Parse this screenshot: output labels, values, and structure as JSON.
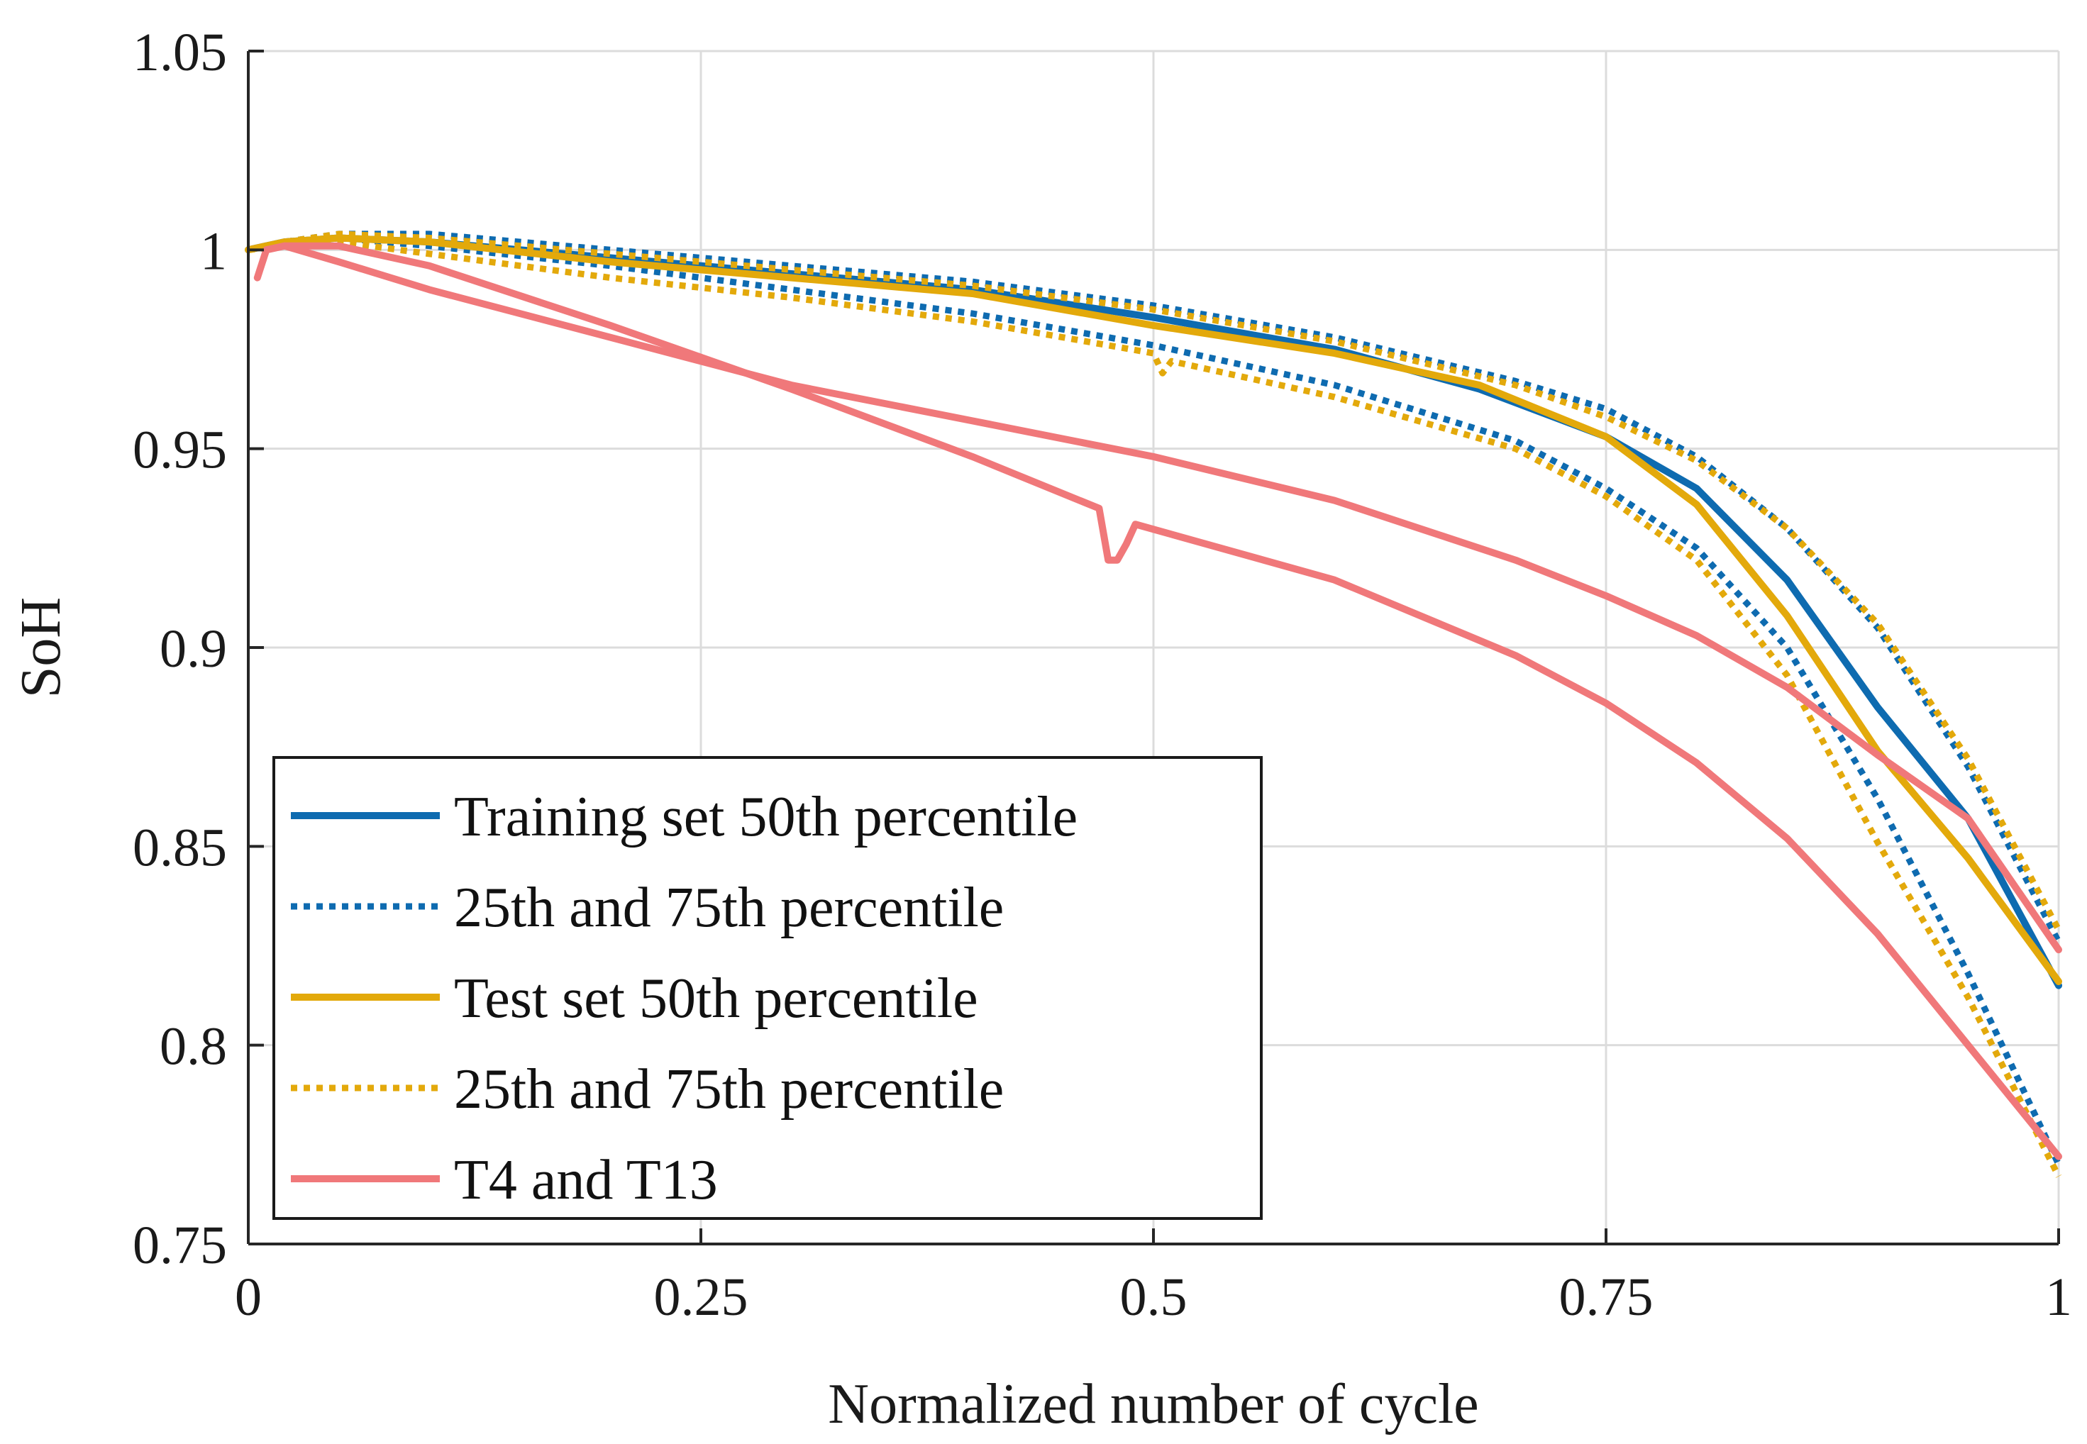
{
  "chart_data": {
    "type": "line",
    "title": "",
    "xlabel": "Normalized number of cycle",
    "ylabel": "SoH",
    "xlim": [
      0,
      1
    ],
    "ylim": [
      0.75,
      1.05
    ],
    "grid": true,
    "legend_position": "bottom-left",
    "x_ticks": [
      {
        "value": 0,
        "label": "0"
      },
      {
        "value": 0.25,
        "label": "0.25"
      },
      {
        "value": 0.5,
        "label": "0.5"
      },
      {
        "value": 0.75,
        "label": "0.75"
      },
      {
        "value": 1,
        "label": "1"
      }
    ],
    "y_ticks": [
      {
        "value": 0.75,
        "label": "0.75"
      },
      {
        "value": 0.8,
        "label": "0.8"
      },
      {
        "value": 0.85,
        "label": "0.85"
      },
      {
        "value": 0.9,
        "label": "0.9"
      },
      {
        "value": 0.95,
        "label": "0.95"
      },
      {
        "value": 1.0,
        "label": "1"
      },
      {
        "value": 1.05,
        "label": "1.05"
      }
    ],
    "series": [
      {
        "name": "Training set 50th percentile",
        "color": "#0e6bb0",
        "style": "solid",
        "x": [
          0.0,
          0.02,
          0.05,
          0.1,
          0.2,
          0.3,
          0.4,
          0.5,
          0.6,
          0.68,
          0.75,
          0.8,
          0.85,
          0.9,
          0.95,
          1.0
        ],
        "y": [
          1.0,
          1.002,
          1.003,
          1.002,
          0.998,
          0.994,
          0.99,
          0.983,
          0.975,
          0.965,
          0.953,
          0.94,
          0.917,
          0.885,
          0.857,
          0.815
        ]
      },
      {
        "name": "25th and 75th percentile",
        "color": "#0e6bb0",
        "style": "dotted",
        "x": [
          0.0,
          0.02,
          0.05,
          0.1,
          0.2,
          0.3,
          0.4,
          0.5,
          0.6,
          0.7,
          0.75,
          0.8,
          0.85,
          0.9,
          0.95,
          1.0
        ],
        "y": [
          1.0,
          1.002,
          1.004,
          1.004,
          1.0,
          0.996,
          0.992,
          0.986,
          0.978,
          0.967,
          0.96,
          0.948,
          0.93,
          0.905,
          0.87,
          0.826
        ]
      },
      {
        "name": "25th and 75th percentile",
        "color": "#0e6bb0",
        "style": "dotted",
        "x": [
          0.0,
          0.02,
          0.05,
          0.1,
          0.2,
          0.3,
          0.4,
          0.5,
          0.6,
          0.7,
          0.75,
          0.8,
          0.85,
          0.9,
          0.95,
          1.0
        ],
        "y": [
          1.0,
          1.002,
          1.003,
          1.001,
          0.996,
          0.99,
          0.984,
          0.976,
          0.966,
          0.952,
          0.94,
          0.925,
          0.9,
          0.862,
          0.818,
          0.77
        ],
        "legend": false
      },
      {
        "name": "Test set 50th percentile",
        "color": "#e3a90b",
        "style": "solid",
        "x": [
          0.0,
          0.02,
          0.05,
          0.1,
          0.2,
          0.3,
          0.4,
          0.5,
          0.6,
          0.68,
          0.75,
          0.8,
          0.85,
          0.9,
          0.95,
          1.0
        ],
        "y": [
          1.0,
          1.002,
          1.003,
          1.002,
          0.997,
          0.993,
          0.989,
          0.981,
          0.974,
          0.966,
          0.953,
          0.936,
          0.908,
          0.874,
          0.847,
          0.816
        ]
      },
      {
        "name": "25th and 75th percentile",
        "color": "#e3a90b",
        "style": "dotted",
        "x": [
          0.0,
          0.02,
          0.05,
          0.1,
          0.2,
          0.3,
          0.4,
          0.5,
          0.6,
          0.7,
          0.75,
          0.8,
          0.85,
          0.9,
          0.95,
          1.0
        ],
        "y": [
          1.0,
          1.002,
          1.004,
          1.003,
          0.999,
          0.995,
          0.991,
          0.985,
          0.977,
          0.966,
          0.958,
          0.947,
          0.93,
          0.906,
          0.872,
          0.829
        ]
      },
      {
        "name": "25th and 75th percentile",
        "color": "#e3a90b",
        "style": "dotted",
        "x": [
          0.0,
          0.02,
          0.05,
          0.1,
          0.2,
          0.3,
          0.4,
          0.5,
          0.505,
          0.51,
          0.6,
          0.7,
          0.75,
          0.8,
          0.85,
          0.9,
          0.95,
          1.0
        ],
        "y": [
          1.0,
          1.001,
          1.002,
          0.999,
          0.993,
          0.988,
          0.982,
          0.974,
          0.969,
          0.972,
          0.963,
          0.95,
          0.938,
          0.922,
          0.893,
          0.851,
          0.812,
          0.767
        ],
        "legend": false
      },
      {
        "name": "T4 and T13",
        "color": "#f0787a",
        "style": "solid",
        "x": [
          0.005,
          0.01,
          0.02,
          0.05,
          0.1,
          0.2,
          0.3,
          0.4,
          0.5,
          0.6,
          0.7,
          0.75,
          0.8,
          0.85,
          0.9,
          0.95,
          1.0
        ],
        "y": [
          0.993,
          1.0,
          1.001,
          0.997,
          0.99,
          0.978,
          0.966,
          0.957,
          0.948,
          0.937,
          0.922,
          0.913,
          0.903,
          0.89,
          0.873,
          0.857,
          0.824
        ]
      },
      {
        "name": "T4 and T13",
        "color": "#f0787a",
        "style": "solid",
        "x": [
          0.01,
          0.02,
          0.05,
          0.1,
          0.2,
          0.3,
          0.4,
          0.47,
          0.475,
          0.48,
          0.485,
          0.49,
          0.6,
          0.7,
          0.75,
          0.8,
          0.85,
          0.9,
          0.95,
          1.0
        ],
        "y": [
          1.0,
          1.001,
          1.001,
          0.996,
          0.981,
          0.965,
          0.948,
          0.935,
          0.922,
          0.922,
          0.926,
          0.931,
          0.917,
          0.898,
          0.886,
          0.871,
          0.852,
          0.828,
          0.8,
          0.772
        ],
        "legend": false
      }
    ],
    "legend_entries": [
      {
        "label": "Training set 50th percentile",
        "color": "#0e6bb0",
        "style": "solid"
      },
      {
        "label": "25th and 75th percentile",
        "color": "#0e6bb0",
        "style": "dotted"
      },
      {
        "label": "Test set 50th percentile",
        "color": "#e3a90b",
        "style": "solid"
      },
      {
        "label": "25th and 75th percentile",
        "color": "#e3a90b",
        "style": "dotted"
      },
      {
        "label": "T4 and T13",
        "color": "#f0787a",
        "style": "solid"
      }
    ]
  }
}
